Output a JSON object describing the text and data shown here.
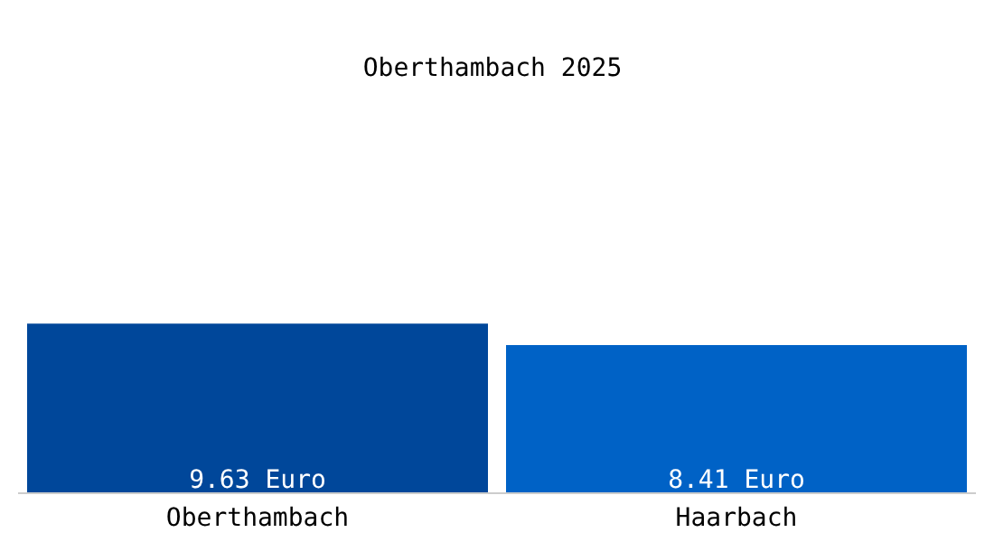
{
  "chart_data": {
    "type": "bar",
    "title": "Oberthambach 2025",
    "categories": [
      "Oberthambach",
      "Haarbach"
    ],
    "values": [
      9.63,
      8.41
    ],
    "colors": [
      "#00479a",
      "#0062c6"
    ],
    "value_labels": [
      "9.63 Euro",
      "8.41 Euro"
    ],
    "ylim": [
      0,
      28
    ],
    "grid": false
  }
}
